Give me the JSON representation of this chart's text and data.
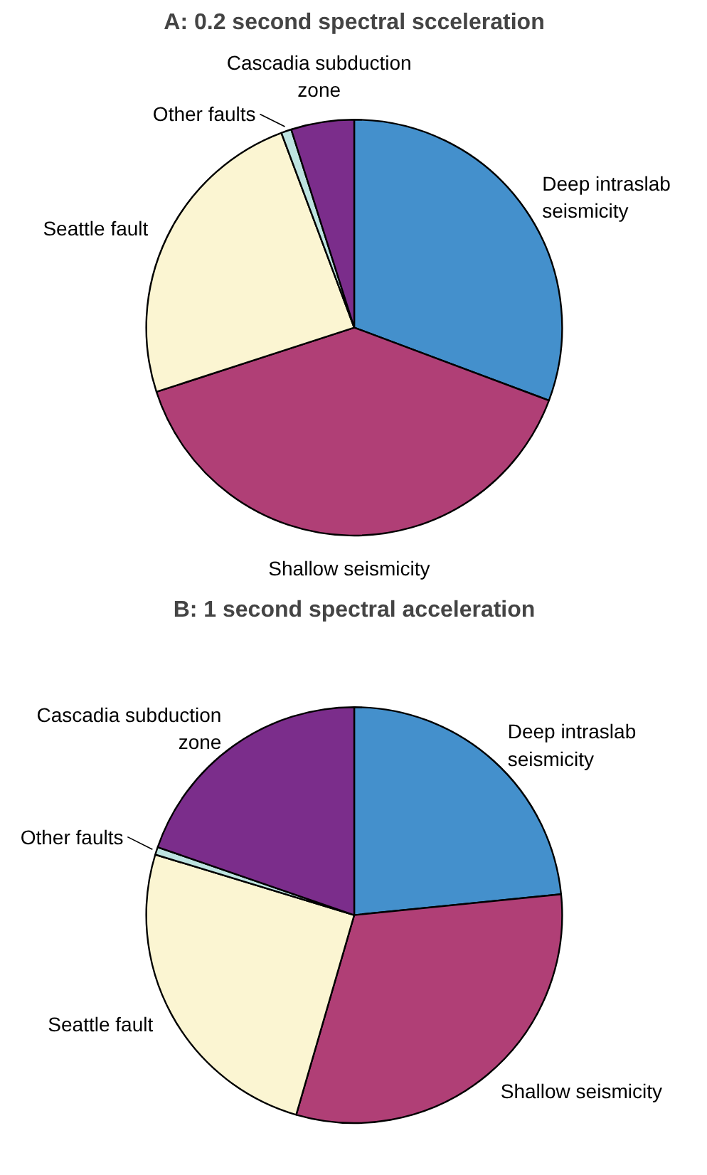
{
  "chart_data": [
    {
      "type": "pie",
      "title": "A: 0.2 second spectral scceleration",
      "categories": [
        "Deep intraslab seismicity",
        "Shallow seismicity",
        "Seattle fault",
        "Other faults",
        "Cascadia subduction zone"
      ],
      "values": [
        30.7,
        39.3,
        24.3,
        0.8,
        4.9
      ],
      "colors": [
        "#4490cc",
        "#b03f76",
        "#fbf5d2",
        "#bde3e0",
        "#7b2d8b"
      ]
    },
    {
      "type": "pie",
      "title": "B: 1 second spectral acceleration",
      "categories": [
        "Deep intraslab seismicity",
        "Shallow seismicity",
        "Seattle fault",
        "Other faults",
        "Cascadia subduction zone"
      ],
      "values": [
        23.4,
        31.1,
        25.2,
        0.6,
        19.7
      ],
      "colors": [
        "#4490cc",
        "#b03f76",
        "#fbf5d2",
        "#bde3e0",
        "#7b2d8b"
      ]
    }
  ]
}
